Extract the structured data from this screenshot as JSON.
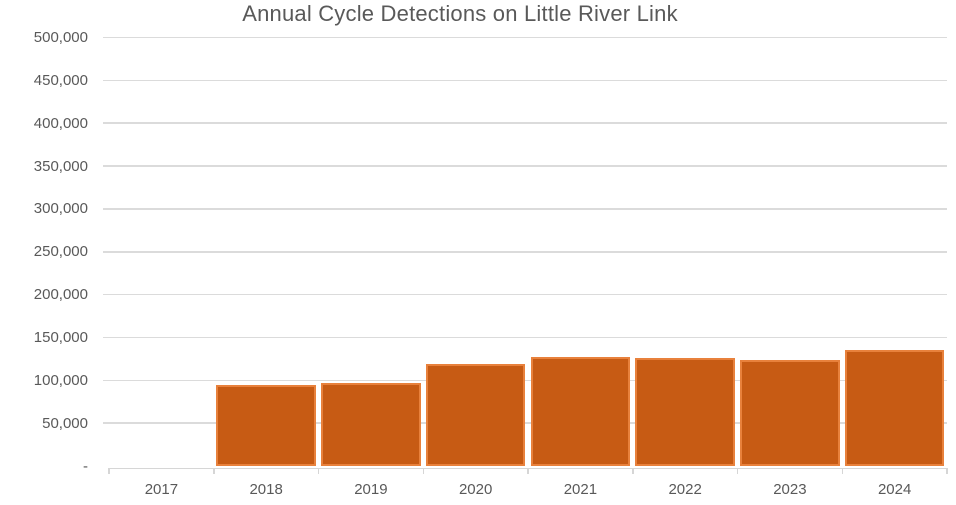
{
  "chart_data": {
    "type": "bar",
    "title": "Annual Cycle Detections on Little River Link",
    "categories": [
      "2017",
      "2018",
      "2019",
      "2020",
      "2021",
      "2022",
      "2023",
      "2024"
    ],
    "values": [
      0,
      95000,
      97000,
      119000,
      127000,
      126000,
      124000,
      135000
    ],
    "xlabel": "",
    "ylabel": "",
    "ylim": [
      0,
      500000
    ],
    "ytick_interval": 50000,
    "ytick_labels": [
      "-",
      "50,000",
      "100,000",
      "150,000",
      "200,000",
      "250,000",
      "300,000",
      "350,000",
      "400,000",
      "450,000",
      "500,000"
    ],
    "grid": true,
    "legend": false,
    "colors": {
      "bar_fill": "#C75B14",
      "bar_border": "#E8813C",
      "gridline": "#DBDBDB",
      "axis_line": "#D6D6D6",
      "text": "#595959"
    }
  }
}
